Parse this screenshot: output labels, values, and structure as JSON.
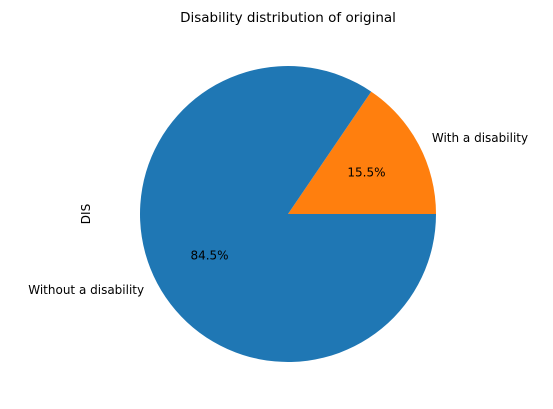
{
  "chart_data": {
    "type": "pie",
    "title": "Disability distribution of original",
    "ylabel": "DIS",
    "slices": [
      {
        "label": "With a disability",
        "value": 15.5,
        "pct_label": "15.5%",
        "color": "#ff7f0e"
      },
      {
        "label": "Without a disability",
        "value": 84.5,
        "pct_label": "84.5%",
        "color": "#1f77b4"
      }
    ]
  }
}
